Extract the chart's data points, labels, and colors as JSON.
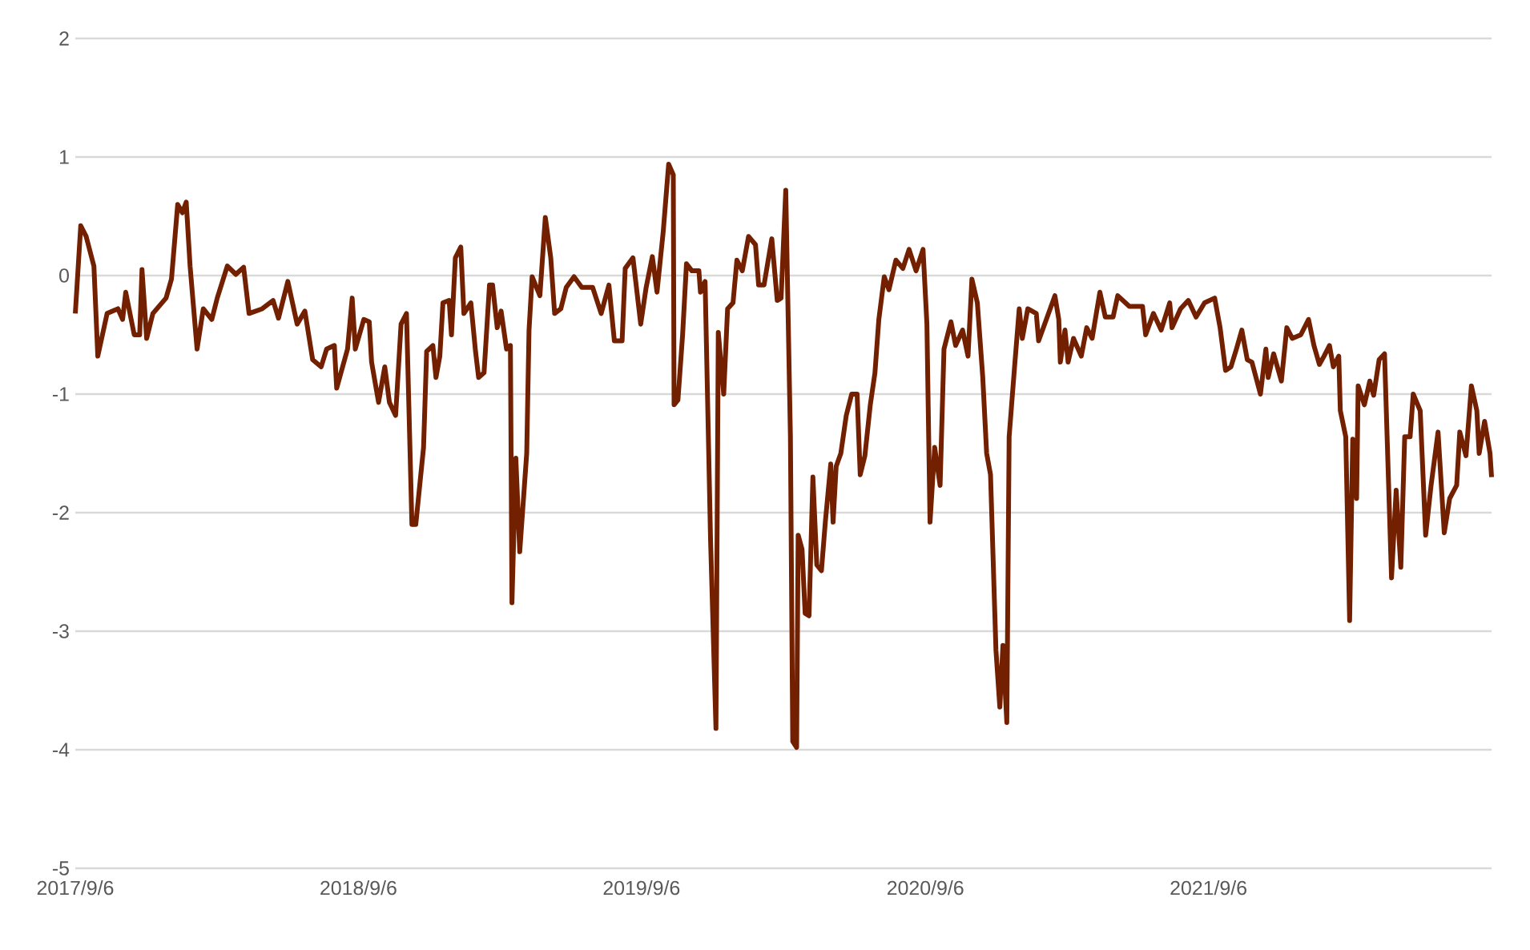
{
  "chart_data": {
    "type": "line",
    "color": "#722000",
    "grid": "y",
    "xlim": [
      "2017-09-06",
      "2022-09-06"
    ],
    "xticks": [
      {
        "value": "2017-09-06",
        "label": "2017/9/6"
      },
      {
        "value": "2018-09-06",
        "label": "2018/9/6"
      },
      {
        "value": "2019-09-06",
        "label": "2019/9/6"
      },
      {
        "value": "2020-09-06",
        "label": "2020/9/6"
      },
      {
        "value": "2021-09-06",
        "label": "2021/9/6"
      }
    ],
    "ylim": [
      -5,
      2
    ],
    "yticks": [
      -5,
      -4,
      -3,
      -2,
      -1,
      0,
      1,
      2
    ],
    "x": [
      "2017-09-06",
      "2017-09-13",
      "2017-09-20",
      "2017-09-30",
      "2017-10-05",
      "2017-10-17",
      "2017-10-31",
      "2017-11-06",
      "2017-11-10",
      "2017-11-21",
      "2017-11-28",
      "2017-12-01",
      "2017-12-07",
      "2017-12-15",
      "2018-01-01",
      "2018-01-08",
      "2018-01-16",
      "2018-01-22",
      "2018-01-27",
      "2018-02-01",
      "2018-02-10",
      "2018-02-18",
      "2018-03-01",
      "2018-03-08",
      "2018-03-21",
      "2018-04-01",
      "2018-04-11",
      "2018-04-18",
      "2018-05-05",
      "2018-05-19",
      "2018-05-26",
      "2018-06-07",
      "2018-06-19",
      "2018-06-29",
      "2018-07-09",
      "2018-07-20",
      "2018-07-27",
      "2018-08-06",
      "2018-08-09",
      "2018-08-23",
      "2018-08-29",
      "2018-09-02",
      "2018-09-13",
      "2018-09-20",
      "2018-09-23",
      "2018-10-02",
      "2018-10-10",
      "2018-10-16",
      "2018-10-24",
      "2018-10-31",
      "2018-11-07",
      "2018-11-14",
      "2018-11-19",
      "2018-11-29",
      "2018-12-03",
      "2018-12-11",
      "2018-12-15",
      "2018-12-20",
      "2018-12-24",
      "2019-01-01",
      "2019-01-04",
      "2019-01-09",
      "2019-01-16",
      "2019-01-20",
      "2019-01-29",
      "2019-02-04",
      "2019-02-08",
      "2019-02-15",
      "2019-02-22",
      "2019-02-26",
      "2019-03-04",
      "2019-03-09",
      "2019-03-16",
      "2019-03-21",
      "2019-03-23",
      "2019-03-28",
      "2019-04-02",
      "2019-04-11",
      "2019-04-14",
      "2019-04-18",
      "2019-04-28",
      "2019-05-05",
      "2019-05-12",
      "2019-05-17",
      "2019-05-25",
      "2019-06-01",
      "2019-06-11",
      "2019-06-21",
      "2019-07-05",
      "2019-07-16",
      "2019-07-26",
      "2019-08-02",
      "2019-08-12",
      "2019-08-16",
      "2019-08-26",
      "2019-09-05",
      "2019-09-12",
      "2019-09-20",
      "2019-09-26",
      "2019-10-04",
      "2019-10-11",
      "2019-10-17",
      "2019-10-18",
      "2019-10-23",
      "2019-10-29",
      "2019-11-03",
      "2019-11-10",
      "2019-11-19",
      "2019-11-21",
      "2019-11-27",
      "2019-12-04",
      "2019-12-11",
      "2019-12-14",
      "2019-12-21",
      "2019-12-26",
      "2020-01-02",
      "2020-01-07",
      "2020-01-14",
      "2020-01-22",
      "2020-01-31",
      "2020-02-04",
      "2020-02-11",
      "2020-02-21",
      "2020-02-28",
      "2020-03-04",
      "2020-03-10",
      "2020-03-16",
      "2020-03-19",
      "2020-03-24",
      "2020-03-26",
      "2020-03-31",
      "2020-04-04",
      "2020-04-09",
      "2020-04-14",
      "2020-04-19",
      "2020-04-25",
      "2020-04-30",
      "2020-05-07",
      "2020-05-10",
      "2020-05-14",
      "2020-05-20",
      "2020-05-27",
      "2020-06-03",
      "2020-06-10",
      "2020-06-14",
      "2020-06-20",
      "2020-06-27",
      "2020-07-03",
      "2020-07-08",
      "2020-07-15",
      "2020-07-21",
      "2020-07-30",
      "2020-08-08",
      "2020-08-16",
      "2020-08-25",
      "2020-09-03",
      "2020-09-08",
      "2020-09-12",
      "2020-09-18",
      "2020-09-25",
      "2020-09-30",
      "2020-10-09",
      "2020-10-15",
      "2020-10-24",
      "2020-10-31",
      "2020-11-05",
      "2020-11-12",
      "2020-11-19",
      "2020-11-24",
      "2020-11-29",
      "2020-12-06",
      "2020-12-11",
      "2020-12-15",
      "2020-12-20",
      "2020-12-23",
      "2020-12-30",
      "2021-01-05",
      "2021-01-09",
      "2021-01-16",
      "2021-01-27",
      "2021-01-30",
      "2021-02-09",
      "2021-02-20",
      "2021-02-25",
      "2021-02-27",
      "2021-03-05",
      "2021-03-09",
      "2021-03-16",
      "2021-03-26",
      "2021-04-02",
      "2021-04-09",
      "2021-04-19",
      "2021-04-26",
      "2021-05-06",
      "2021-05-12",
      "2021-05-27",
      "2021-06-13",
      "2021-06-17",
      "2021-06-27",
      "2021-07-07",
      "2021-07-18",
      "2021-07-21",
      "2021-08-01",
      "2021-08-11",
      "2021-08-21",
      "2021-09-01",
      "2021-09-14",
      "2021-09-21",
      "2021-09-28",
      "2021-10-05",
      "2021-10-12",
      "2021-10-19",
      "2021-10-26",
      "2021-11-01",
      "2021-11-12",
      "2021-11-19",
      "2021-11-22",
      "2021-11-29",
      "2021-12-09",
      "2021-12-16",
      "2021-12-23",
      "2022-01-03",
      "2022-01-13",
      "2022-01-20",
      "2022-01-27",
      "2022-02-02",
      "2022-02-09",
      "2022-02-14",
      "2022-02-21",
      "2022-02-23",
      "2022-03-02",
      "2022-03-07",
      "2022-03-11",
      "2022-03-16",
      "2022-03-18",
      "2022-03-26",
      "2022-04-02",
      "2022-04-07",
      "2022-04-14",
      "2022-04-21",
      "2022-04-30",
      "2022-05-06",
      "2022-05-12",
      "2022-05-17",
      "2022-05-24",
      "2022-05-28",
      "2022-06-06",
      "2022-06-13",
      "2022-06-20",
      "2022-06-29",
      "2022-07-07",
      "2022-07-14",
      "2022-07-23",
      "2022-07-27",
      "2022-08-04",
      "2022-08-11",
      "2022-08-18",
      "2022-08-21",
      "2022-08-28",
      "2022-09-04",
      "2022-09-06"
    ],
    "values": [
      -0.32,
      0.42,
      0.33,
      0.08,
      -0.68,
      -0.32,
      -0.28,
      -0.37,
      -0.14,
      -0.5,
      -0.5,
      0.05,
      -0.53,
      -0.32,
      -0.19,
      -0.03,
      0.6,
      0.53,
      0.62,
      0.08,
      -0.62,
      -0.28,
      -0.37,
      -0.19,
      0.08,
      0.01,
      0.07,
      -0.32,
      -0.28,
      -0.21,
      -0.36,
      -0.05,
      -0.41,
      -0.3,
      -0.71,
      -0.77,
      -0.62,
      -0.59,
      -0.95,
      -0.62,
      -0.19,
      -0.62,
      -0.37,
      -0.39,
      -0.73,
      -1.07,
      -0.77,
      -1.07,
      -1.18,
      -0.41,
      -0.32,
      -2.1,
      -2.1,
      -1.45,
      -0.64,
      -0.59,
      -0.86,
      -0.68,
      -0.23,
      -0.21,
      -0.5,
      0.15,
      0.24,
      -0.32,
      -0.23,
      -0.64,
      -0.86,
      -0.82,
      -0.08,
      -0.08,
      -0.44,
      -0.3,
      -0.62,
      -0.59,
      -2.76,
      -1.54,
      -2.33,
      -1.5,
      -0.46,
      -0.01,
      -0.17,
      0.49,
      0.15,
      -0.32,
      -0.28,
      -0.1,
      -0.01,
      -0.1,
      -0.1,
      -0.32,
      -0.08,
      -0.55,
      -0.55,
      0.06,
      0.15,
      -0.41,
      -0.1,
      0.16,
      -0.14,
      0.37,
      0.94,
      0.85,
      -1.09,
      -1.05,
      -0.5,
      0.1,
      0.04,
      0.04,
      -0.14,
      -0.05,
      -2.22,
      -3.82,
      -0.48,
      -1.0,
      -0.28,
      -0.23,
      0.13,
      0.04,
      0.33,
      0.26,
      -0.08,
      -0.08,
      0.31,
      -0.21,
      -0.19,
      0.72,
      -1.36,
      -3.93,
      -3.98,
      -2.19,
      -2.31,
      -2.85,
      -2.87,
      -1.7,
      -2.44,
      -2.49,
      -2.08,
      -1.59,
      -2.08,
      -1.61,
      -1.5,
      -1.18,
      -1.0,
      -1.0,
      -1.68,
      -1.52,
      -1.09,
      -0.82,
      -0.37,
      -0.01,
      -0.12,
      0.13,
      0.06,
      0.22,
      0.04,
      0.22,
      -0.41,
      -2.08,
      -1.45,
      -1.77,
      -0.62,
      -0.39,
      -0.59,
      -0.46,
      -0.68,
      -0.03,
      -0.23,
      -0.86,
      -1.5,
      -1.68,
      -3.16,
      -3.64,
      -3.12,
      -3.77,
      -1.36,
      -0.77,
      -0.28,
      -0.53,
      -0.28,
      -0.32,
      -0.55,
      -0.37,
      -0.17,
      -0.37,
      -0.73,
      -0.46,
      -0.73,
      -0.53,
      -0.68,
      -0.44,
      -0.53,
      -0.14,
      -0.35,
      -0.35,
      -0.17,
      -0.26,
      -0.26,
      -0.5,
      -0.32,
      -0.46,
      -0.23,
      -0.44,
      -0.28,
      -0.21,
      -0.35,
      -0.23,
      -0.19,
      -0.44,
      -0.8,
      -0.77,
      -0.62,
      -0.46,
      -0.71,
      -0.73,
      -1.0,
      -0.62,
      -0.86,
      -0.66,
      -0.89,
      -0.44,
      -0.53,
      -0.5,
      -0.37,
      -0.59,
      -0.75,
      -0.68,
      -0.59,
      -0.77,
      -0.68,
      -1.14,
      -1.36,
      -2.91,
      -1.38,
      -1.88,
      -0.93,
      -1.09,
      -0.89,
      -1.01,
      -0.71,
      -0.66,
      -2.55,
      -1.81,
      -2.46,
      -1.36,
      -1.36,
      -1.0,
      -1.14,
      -2.19,
      -1.77,
      -1.32,
      -2.17,
      -1.88,
      -1.77,
      -1.32,
      -1.52,
      -0.93,
      -1.14,
      -1.5,
      -1.23,
      -1.5,
      -1.7
    ]
  }
}
